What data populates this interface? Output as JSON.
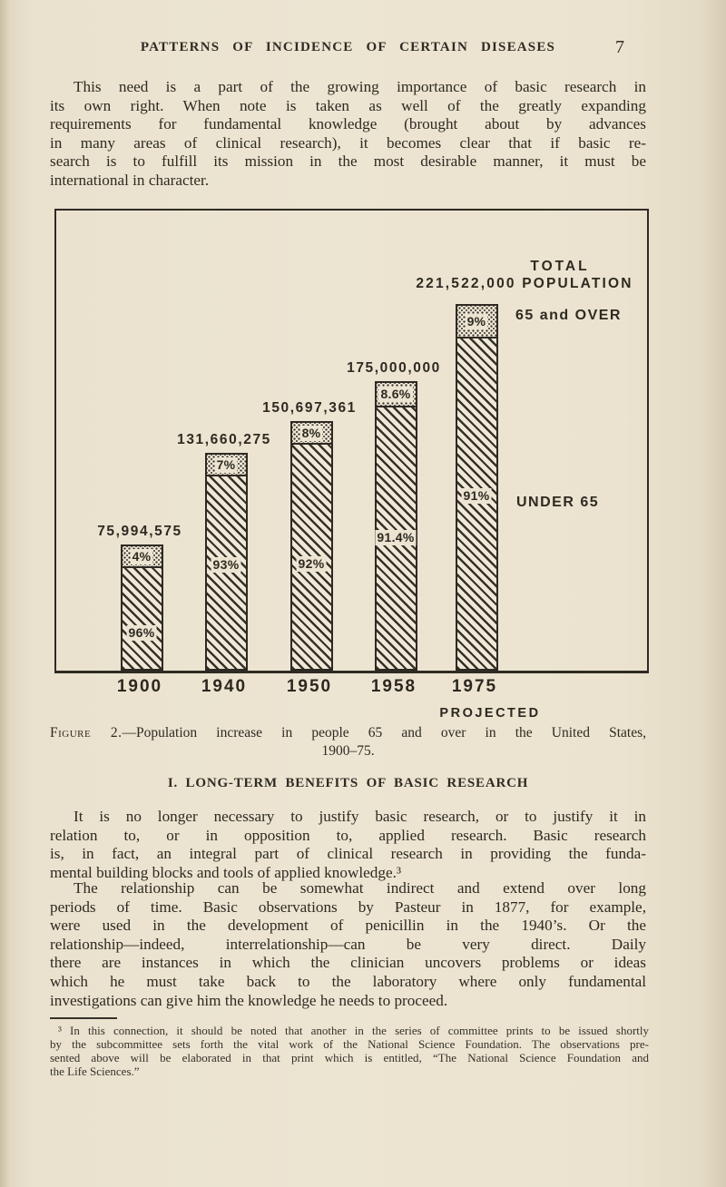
{
  "header": {
    "title": "PATTERNS OF INCIDENCE OF CERTAIN DISEASES",
    "page_number": "7"
  },
  "paragraphs": {
    "intro": {
      "lines": [
        "This need is a part of the growing importance of basic research in",
        "its own right.  When note is taken as well of the greatly expanding",
        "requirements for fundamental knowledge (brought about by advances",
        "in many areas of clinical research), it becomes clear that if basic re-",
        "search is to fulfill its mission in the most desirable manner, it must be",
        "international in character."
      ]
    },
    "basic1": {
      "lines": [
        "It is no longer necessary to justify basic research, or to justify it in",
        "relation to, or in opposition to, applied research.  Basic research",
        "is, in fact, an integral part of clinical research in providing the funda-",
        "mental building blocks and tools of applied knowledge.³"
      ]
    },
    "basic2": {
      "lines": [
        "The relationship can be somewhat indirect and extend over long",
        "periods of time.  Basic observations by Pasteur in 1877, for example,",
        "were used in the development of penicillin in the 1940’s.  Or the",
        "relationship—indeed, interrelationship—can be very direct.  Daily",
        "there are instances in which the clinician uncovers problems or ideas",
        "which he must take back to the laboratory where only fundamental",
        "investigations can give him the knowledge he needs to proceed."
      ]
    }
  },
  "chart_data": {
    "type": "bar",
    "stacked": true,
    "categories": [
      "1900",
      "1940",
      "1950",
      "1958",
      "1975"
    ],
    "totals": [
      75994575,
      131660275,
      150697361,
      175000000,
      221522000
    ],
    "total_labels": [
      "75,994,575",
      "131,660,275",
      "150,697,361",
      "175,000,000",
      "221,522,000"
    ],
    "series": [
      {
        "name": "UNDER 65",
        "pattern": "diagonal-hatch",
        "values_pct": [
          96,
          93,
          92,
          91.4,
          91
        ],
        "labels": [
          "96%",
          "93%",
          "92%",
          "91.4%",
          "91%"
        ]
      },
      {
        "name": "65 and OVER",
        "pattern": "stipple-dots",
        "values_pct": [
          4,
          7,
          8,
          8.6,
          9
        ],
        "labels": [
          "4%",
          "7%",
          "8%",
          "8.6%",
          "9%"
        ]
      }
    ],
    "annotations": {
      "total_line1": "TOTAL",
      "total_line2": "221,522,000 POPULATION",
      "over_label": "65 and OVER",
      "under_label": "UNDER 65",
      "projected": "PROJECTED"
    },
    "ylim": [
      0,
      221522000
    ],
    "grid": false,
    "legend_position": "inline-right"
  },
  "figure_caption": {
    "label": "Figure 2.",
    "text": "—Population increase in people 65 and over in the United States,",
    "line2": "1900–75."
  },
  "section_heading": "I. LONG-TERM BENEFITS OF BASIC RESEARCH",
  "footnote": {
    "lines": [
      "³ In this connection, it should be noted that another in the series of committee prints to be issued shortly",
      "by the subcommittee sets forth the vital work of the National Science Foundation.  The observations pre-",
      "sented above will be elaborated in that print which is entitled, “The National Science Foundation and",
      "the Life Sciences.”"
    ]
  },
  "colors": {
    "paper": "#eae2ce",
    "ink": "#2e2a22",
    "bar_fill": "#efe8d7"
  }
}
